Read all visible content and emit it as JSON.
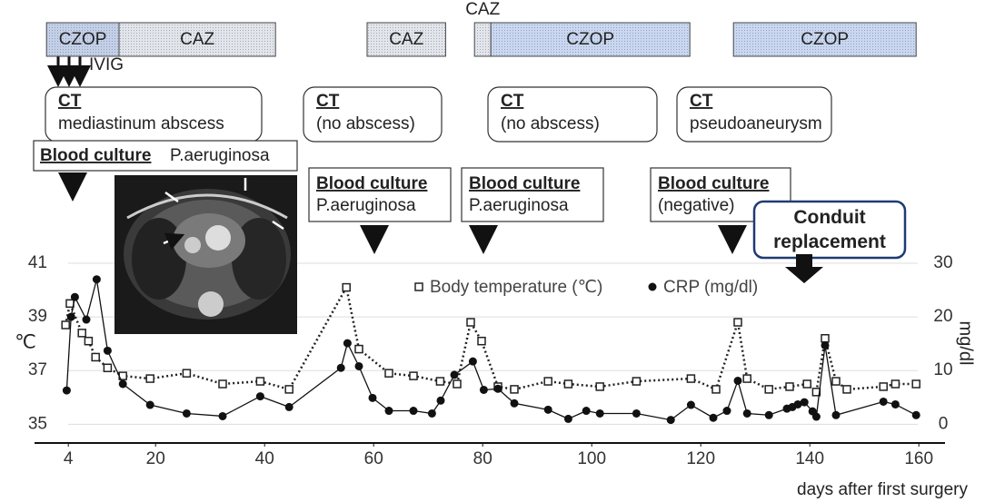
{
  "chart_data": {
    "type": "line",
    "xlim": [
      -2.2,
      164.8
    ],
    "xticks": [
      4,
      20,
      40,
      60,
      80,
      100,
      120,
      140,
      160
    ],
    "ylim": [
      34.3,
      41
    ],
    "yticks": [
      35,
      37,
      39,
      41
    ],
    "y2lim": [
      -3.5,
      30
    ],
    "y2ticks": [
      0,
      10,
      20,
      30
    ],
    "grid": true,
    "xlabel": "days after first surgery",
    "ylabel": "℃",
    "y2label": "mg/dl",
    "series": [
      {
        "name": "Body temperature (℃)",
        "axis": "y",
        "color": "#222",
        "line": "dotted",
        "marker": "square",
        "x": [
          3.5,
          4.3,
          6.5,
          7.7,
          9,
          11.2,
          14,
          19,
          25.7,
          32.3,
          39.2,
          44.5,
          55,
          57.3,
          62.8,
          67.3,
          72.2,
          75.3,
          77.8,
          79.8,
          82.8,
          85.8,
          92,
          95.7,
          101.5,
          108.2,
          118.2,
          122.8,
          126.8,
          128.5,
          132.5,
          136.3,
          139.5,
          141.2,
          142.8,
          144.8,
          146.8,
          153.5,
          155.7,
          159.5
        ],
        "values": [
          38.7,
          39.5,
          38.4,
          38.1,
          37.5,
          37.1,
          36.8,
          36.7,
          36.9,
          36.5,
          36.6,
          36.3,
          40.1,
          37.8,
          36.9,
          36.8,
          36.6,
          36.5,
          38.8,
          38.1,
          36.4,
          36.3,
          36.6,
          36.5,
          36.4,
          36.6,
          36.7,
          36.3,
          38.8,
          36.7,
          36.3,
          36.4,
          36.5,
          36.2,
          38.2,
          36.6,
          36.3,
          36.4,
          36.5,
          36.5
        ]
      },
      {
        "name": "CRP (mg/dl)",
        "axis": "y2",
        "color": "#111",
        "line": "solid",
        "marker": "circle",
        "x": [
          3.7,
          4.5,
          5.2,
          7.3,
          9.2,
          11.2,
          14,
          19,
          25.7,
          32.3,
          39.2,
          44.5,
          54,
          55.2,
          57.3,
          59.8,
          62.8,
          67.3,
          70.7,
          72.3,
          74.8,
          78.2,
          80.2,
          82.8,
          85.8,
          92,
          95.7,
          99,
          101.5,
          108.2,
          114.5,
          118.2,
          122.3,
          124.8,
          126.8,
          128.5,
          132.5,
          135.8,
          136.8,
          137.8,
          139,
          140.5,
          141.2,
          142.8,
          144.8,
          153.5,
          155.7,
          159.5
        ],
        "values": [
          6.3,
          20,
          23.7,
          19.5,
          27,
          13.7,
          7.5,
          3.6,
          2,
          1.5,
          5.2,
          3.2,
          10.5,
          15.1,
          10.8,
          4.9,
          2.5,
          2.5,
          2,
          4.4,
          9.2,
          11.7,
          6.4,
          6.6,
          3.9,
          2.7,
          1,
          2.5,
          2,
          2,
          0.8,
          3.6,
          1.2,
          2.5,
          8.1,
          2,
          1.7,
          2.9,
          3.2,
          3.7,
          4.1,
          2.4,
          1.4,
          14.7,
          1.7,
          4.2,
          3.7,
          1.7
        ]
      }
    ],
    "therapy": [
      {
        "label": "CZOP",
        "start": 0,
        "end": 13.3,
        "color": "#c3d0e8"
      },
      {
        "label": "CAZ",
        "start": 13.3,
        "end": 42,
        "color": "#e2e5ea"
      },
      {
        "label": "CAZ",
        "start": 58.8,
        "end": 73.2,
        "color": "#e2e5ea"
      },
      {
        "label": "CAZ",
        "start": 78.5,
        "end": 81.5,
        "color": "#e2e5ea"
      },
      {
        "label": "CZOP",
        "start": 81.5,
        "end": 118,
        "color": "#c9d7f0"
      },
      {
        "label": "CZOP",
        "start": 126,
        "end": 159.5,
        "color": "#c9d7f0"
      }
    ],
    "ivig": "IVIG",
    "ct": [
      {
        "title": "CT",
        "text": "mediastinum abscess"
      },
      {
        "title": "CT",
        "text": "(no abscess)"
      },
      {
        "title": "CT",
        "text": "(no abscess)"
      },
      {
        "title": "CT",
        "text": "pseudoaneurysm"
      }
    ],
    "blood_culture": [
      {
        "title": "Blood culture",
        "text": "P.aeruginosa"
      },
      {
        "title": "Blood culture",
        "text": "P.aeruginosa"
      },
      {
        "title": "Blood culture",
        "text": "P.aeruginosa"
      },
      {
        "title": "Blood culture",
        "text": "(negative)"
      }
    ],
    "event": "Conduit replacement"
  }
}
